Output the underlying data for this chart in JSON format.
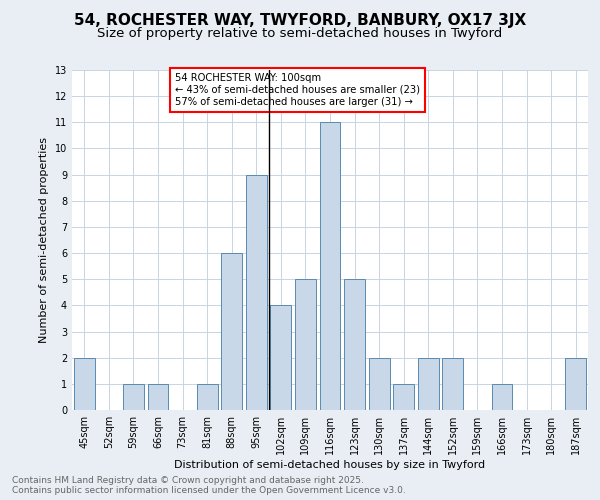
{
  "title": "54, ROCHESTER WAY, TWYFORD, BANBURY, OX17 3JX",
  "subtitle": "Size of property relative to semi-detached houses in Twyford",
  "xlabel": "Distribution of semi-detached houses by size in Twyford",
  "ylabel": "Number of semi-detached properties",
  "footnote1": "Contains HM Land Registry data © Crown copyright and database right 2025.",
  "footnote2": "Contains public sector information licensed under the Open Government Licence v3.0.",
  "bins": [
    "45sqm",
    "52sqm",
    "59sqm",
    "66sqm",
    "73sqm",
    "81sqm",
    "88sqm",
    "95sqm",
    "102sqm",
    "109sqm",
    "116sqm",
    "123sqm",
    "130sqm",
    "137sqm",
    "144sqm",
    "152sqm",
    "159sqm",
    "166sqm",
    "173sqm",
    "180sqm",
    "187sqm"
  ],
  "counts": [
    2,
    0,
    1,
    1,
    0,
    1,
    6,
    9,
    4,
    5,
    11,
    5,
    2,
    1,
    2,
    2,
    0,
    1,
    0,
    0,
    2
  ],
  "bar_color": "#c8d8e8",
  "bar_edge_color": "#5a8ab0",
  "property_sqm": 100,
  "pct_smaller": 43,
  "count_smaller": 23,
  "pct_larger": 57,
  "count_larger": 31,
  "legend_title": "54 ROCHESTER WAY: 100sqm",
  "legend_line1": "← 43% of semi-detached houses are smaller (23)",
  "legend_line2": "57% of semi-detached houses are larger (31) →",
  "ylim": [
    0,
    13
  ],
  "yticks": [
    0,
    1,
    2,
    3,
    4,
    5,
    6,
    7,
    8,
    9,
    10,
    11,
    12,
    13
  ],
  "background_color": "#e8eef4",
  "plot_bg_color": "#ffffff",
  "grid_color": "#c8d4e0",
  "title_fontsize": 11,
  "subtitle_fontsize": 9.5,
  "axis_label_fontsize": 8,
  "tick_fontsize": 7,
  "footnote_fontsize": 6.5,
  "vline_index": 8
}
